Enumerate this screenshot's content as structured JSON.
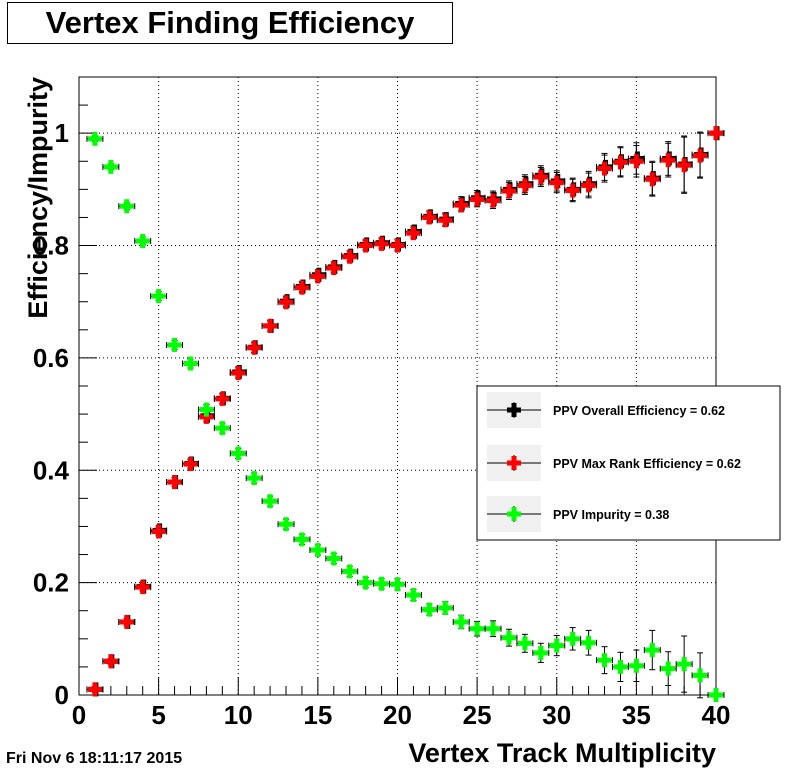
{
  "title": "Vertex Finding Efficiency",
  "timestamp": "Fri Nov  6 18:11:17 2015",
  "chart_data": {
    "type": "scatter",
    "title": "Vertex Finding Efficiency",
    "xlabel": "Vertex Track Multiplicity",
    "ylabel": "Efficiency/Impurity",
    "xlim": [
      0,
      40
    ],
    "ylim": [
      0,
      1.1
    ],
    "x_ticks": [
      0,
      5,
      10,
      15,
      20,
      25,
      30,
      35,
      40
    ],
    "y_ticks": [
      0,
      0.2,
      0.4,
      0.6,
      0.8,
      1
    ],
    "x_tick_labels": [
      "0",
      "5",
      "10",
      "15",
      "20",
      "25",
      "30",
      "35",
      "40"
    ],
    "y_tick_labels": [
      "0",
      "0.2",
      "0.4",
      "0.6",
      "0.8",
      "1"
    ],
    "grid": true,
    "legend_position": "right",
    "x": [
      1,
      2,
      3,
      4,
      5,
      6,
      7,
      8,
      9,
      10,
      11,
      12,
      13,
      14,
      15,
      16,
      17,
      18,
      19,
      20,
      21,
      22,
      23,
      24,
      25,
      26,
      27,
      28,
      29,
      30,
      31,
      32,
      33,
      34,
      35,
      36,
      37,
      38,
      39,
      40
    ],
    "series": [
      {
        "name": "PPV Overall Efficiency = 0.62",
        "color": "#000000",
        "values": [
          0.01,
          0.06,
          0.13,
          0.193,
          0.293,
          0.379,
          0.412,
          0.497,
          0.528,
          0.575,
          0.619,
          0.657,
          0.701,
          0.727,
          0.748,
          0.762,
          0.782,
          0.802,
          0.805,
          0.802,
          0.825,
          0.852,
          0.847,
          0.875,
          0.885,
          0.883,
          0.9,
          0.91,
          0.925,
          0.915,
          0.9,
          0.91,
          0.94,
          0.95,
          0.955,
          0.92,
          0.955,
          0.945,
          0.962,
          1.0
        ],
        "errors": [
          0.005,
          0.005,
          0.006,
          0.007,
          0.008,
          0.008,
          0.008,
          0.009,
          0.009,
          0.009,
          0.009,
          0.009,
          0.009,
          0.009,
          0.009,
          0.009,
          0.009,
          0.009,
          0.009,
          0.01,
          0.01,
          0.01,
          0.011,
          0.012,
          0.013,
          0.014,
          0.015,
          0.016,
          0.017,
          0.018,
          0.02,
          0.022,
          0.024,
          0.026,
          0.028,
          0.03,
          0.03,
          0.05,
          0.04,
          0.0
        ]
      },
      {
        "name": "PPV Max Rank Efficiency = 0.62",
        "color": "#ff0000",
        "values": [
          0.01,
          0.06,
          0.13,
          0.192,
          0.291,
          0.379,
          0.411,
          0.495,
          0.527,
          0.573,
          0.618,
          0.657,
          0.699,
          0.725,
          0.745,
          0.76,
          0.78,
          0.8,
          0.803,
          0.8,
          0.822,
          0.85,
          0.845,
          0.872,
          0.882,
          0.88,
          0.897,
          0.907,
          0.922,
          0.912,
          0.898,
          0.907,
          0.937,
          0.948,
          0.95,
          0.918,
          0.952,
          0.943,
          0.96,
          1.0
        ],
        "errors": [
          0.005,
          0.005,
          0.006,
          0.007,
          0.008,
          0.008,
          0.008,
          0.009,
          0.009,
          0.009,
          0.009,
          0.009,
          0.009,
          0.009,
          0.009,
          0.009,
          0.009,
          0.009,
          0.009,
          0.01,
          0.01,
          0.01,
          0.011,
          0.012,
          0.013,
          0.014,
          0.015,
          0.016,
          0.017,
          0.018,
          0.02,
          0.022,
          0.024,
          0.026,
          0.028,
          0.03,
          0.03,
          0.05,
          0.04,
          0.0
        ]
      },
      {
        "name": "PPV Impurity = 0.38",
        "color": "#00ff00",
        "values": [
          0.99,
          0.94,
          0.87,
          0.808,
          0.71,
          0.623,
          0.59,
          0.508,
          0.475,
          0.43,
          0.386,
          0.345,
          0.304,
          0.277,
          0.258,
          0.243,
          0.22,
          0.2,
          0.198,
          0.197,
          0.178,
          0.152,
          0.155,
          0.13,
          0.118,
          0.118,
          0.102,
          0.092,
          0.075,
          0.088,
          0.1,
          0.093,
          0.062,
          0.05,
          0.052,
          0.08,
          0.047,
          0.055,
          0.035,
          0.0
        ],
        "errors": [
          0.005,
          0.005,
          0.006,
          0.007,
          0.008,
          0.008,
          0.008,
          0.009,
          0.009,
          0.009,
          0.009,
          0.009,
          0.009,
          0.009,
          0.009,
          0.009,
          0.009,
          0.009,
          0.009,
          0.01,
          0.01,
          0.01,
          0.011,
          0.012,
          0.013,
          0.014,
          0.015,
          0.016,
          0.017,
          0.018,
          0.02,
          0.022,
          0.024,
          0.026,
          0.028,
          0.035,
          0.03,
          0.05,
          0.04,
          0.0
        ]
      }
    ]
  }
}
